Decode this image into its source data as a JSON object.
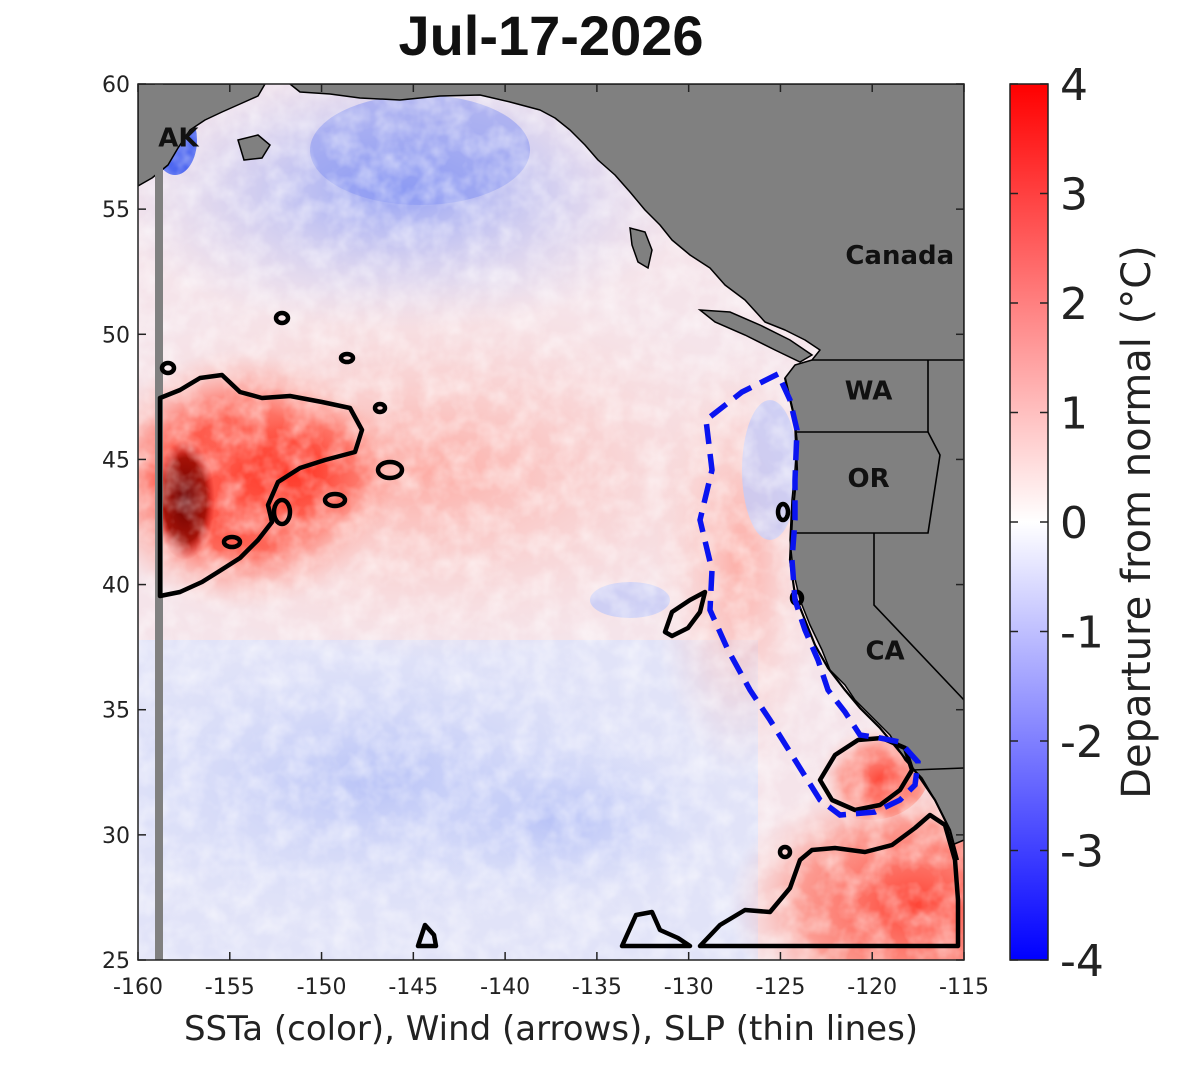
{
  "title": "Jul-17-2026",
  "x_axis": {
    "label": "SSTa (color), Wind (arrows), SLP (thin lines)",
    "range": [
      -160,
      -115
    ],
    "ticks": [
      -160,
      -155,
      -150,
      -145,
      -140,
      -135,
      -130,
      -125,
      -120,
      -115
    ],
    "tick_labels": [
      "-160",
      "-155",
      "-150",
      "-145",
      "-140",
      "-135",
      "-130",
      "-125",
      "-120",
      "-115"
    ]
  },
  "y_axis": {
    "range": [
      25,
      60
    ],
    "ticks": [
      25,
      30,
      35,
      40,
      45,
      50,
      55,
      60
    ],
    "tick_labels": [
      "25",
      "30",
      "35",
      "40",
      "45",
      "50",
      "55",
      "60"
    ]
  },
  "colorbar": {
    "label": "Departure from normal (°C)",
    "range": [
      -4,
      4
    ],
    "ticks": [
      4,
      3,
      2,
      1,
      0,
      -1,
      -2,
      -3,
      -4
    ],
    "tick_labels": [
      "4",
      "3",
      "2",
      "1",
      "0",
      "-1",
      "-2",
      "-3",
      "-4"
    ],
    "colors": {
      "cold": "#0000ff",
      "neutral": "#ffffff",
      "warm": "#ff0000",
      "extreme_warm": "#7a0000"
    }
  },
  "places": [
    {
      "label": "AK",
      "lon": -157.8,
      "lat": 57.5
    },
    {
      "label": "Canada",
      "lon": -118.5,
      "lat": 52.8
    },
    {
      "label": "WA",
      "lon": -120.2,
      "lat": 47.4
    },
    {
      "label": "OR",
      "lon": -120.2,
      "lat": 43.9
    },
    {
      "label": "CA",
      "lon": -119.3,
      "lat": 37.0
    }
  ],
  "colors": {
    "land": "#808080",
    "heatwave_contour": "#000000",
    "core_contour": "#0000ff"
  }
}
